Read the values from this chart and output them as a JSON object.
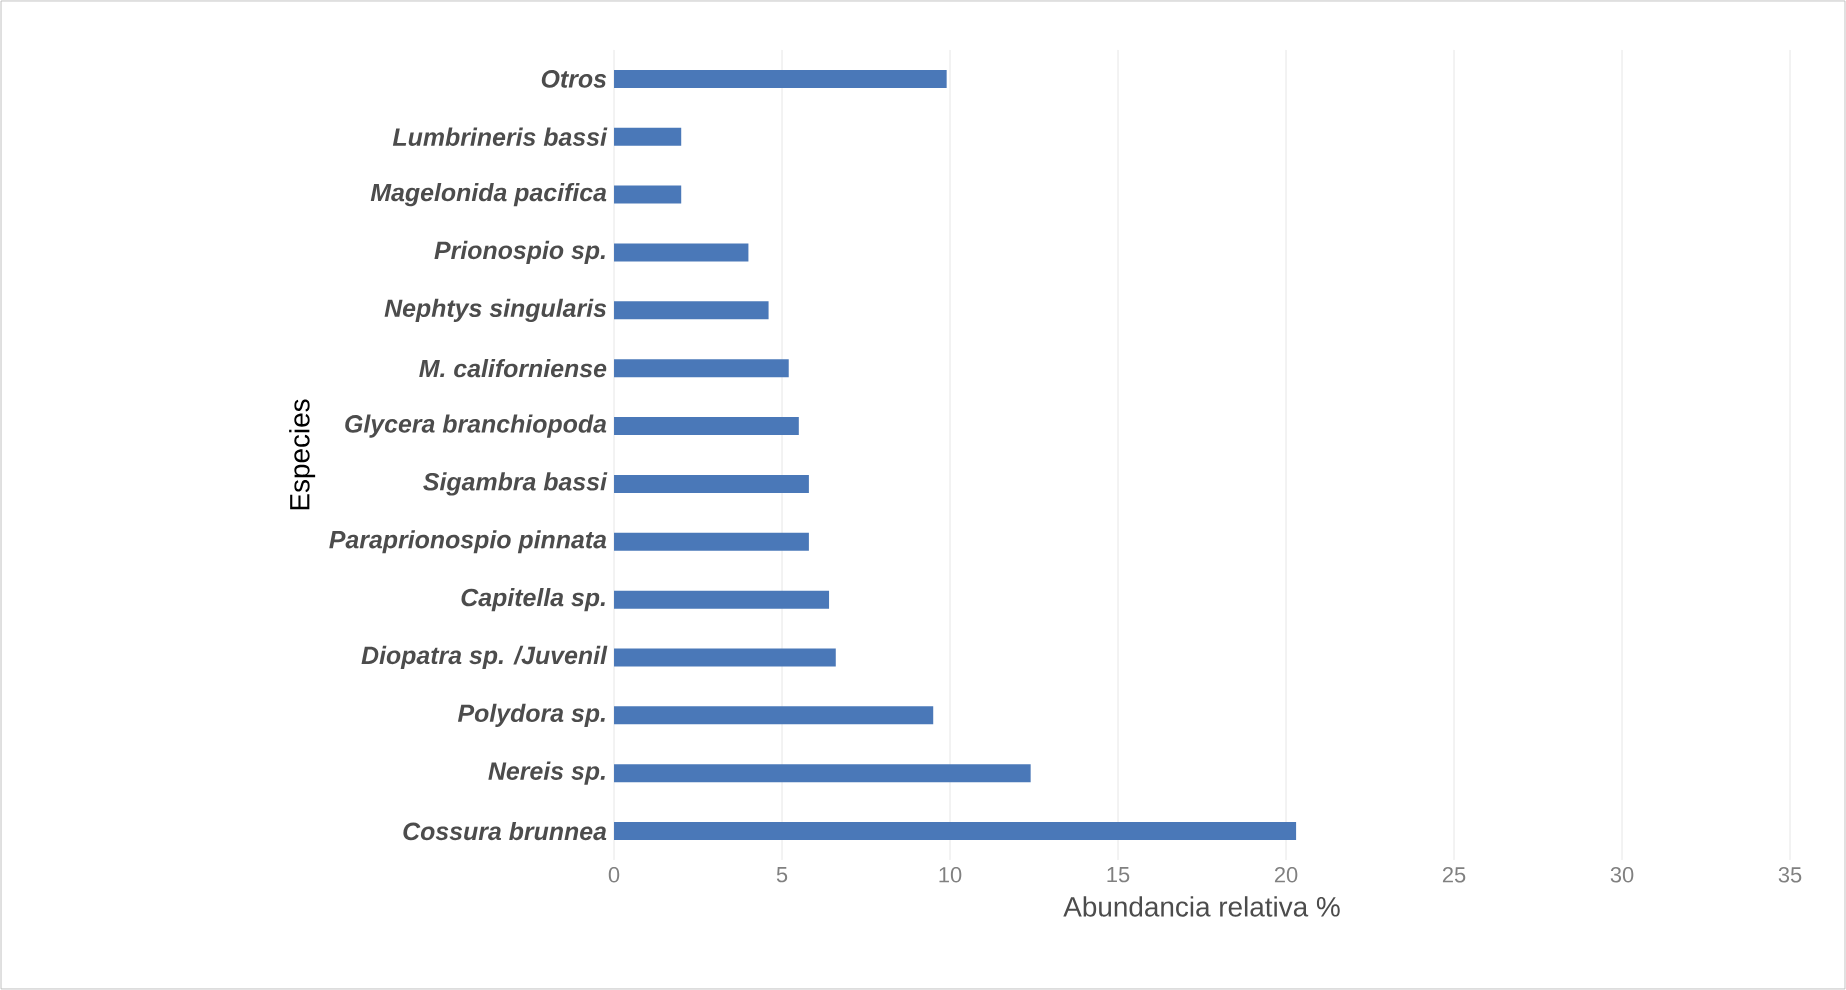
{
  "chart_data": {
    "type": "bar",
    "orientation": "horizontal",
    "categories": [
      "Otros",
      "Lumbrineris bassi",
      "Magelonida pacifica",
      "Prionospio sp.",
      "Nephtys singularis",
      "M. californiense",
      "Glycera branchiopoda",
      "Sigambra bassi",
      "Paraprionospio pinnata",
      "Capitella sp.",
      "Diopatra sp. /Juvenil",
      "Polydora sp.",
      "Nereis sp.",
      "Cossura brunnea"
    ],
    "values": [
      9.9,
      2.0,
      2.0,
      4.0,
      4.6,
      5.2,
      5.5,
      5.8,
      5.8,
      6.4,
      6.6,
      9.5,
      12.4,
      20.3
    ],
    "color": "#4a78b8",
    "xlim": [
      0,
      35
    ],
    "xticks": [
      0,
      5,
      10,
      15,
      20,
      25,
      30,
      35
    ],
    "grid": "x",
    "xlabel": "Abundancia relativa %",
    "ylabel": "Especies"
  }
}
